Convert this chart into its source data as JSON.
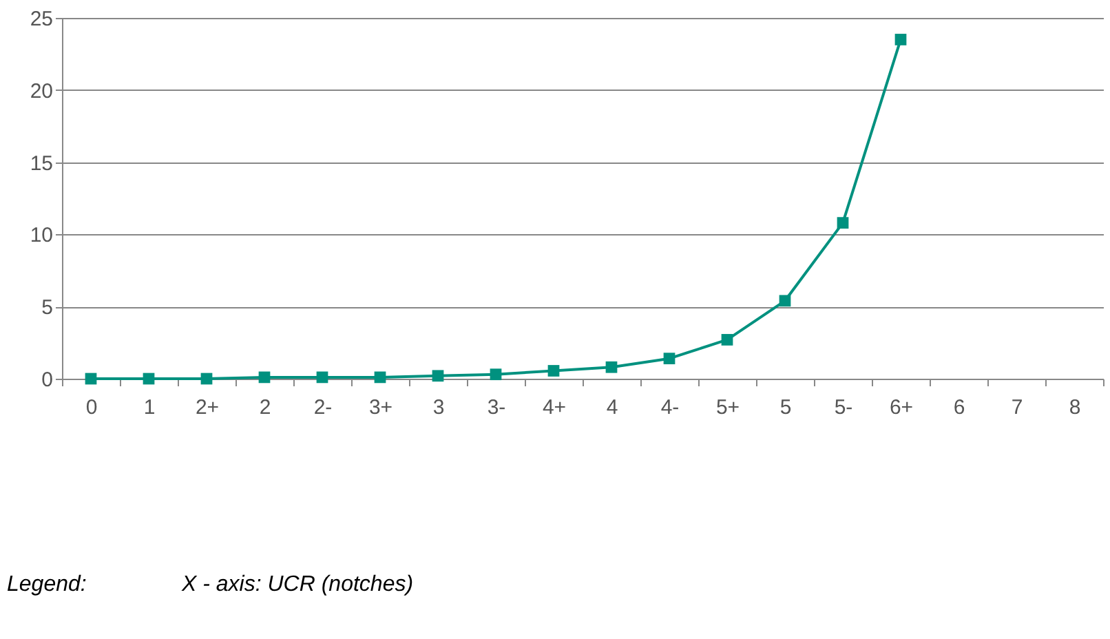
{
  "chart_data": {
    "type": "line",
    "categories": [
      "0",
      "1",
      "2+",
      "2",
      "2-",
      "3+",
      "3",
      "3-",
      "4+",
      "4",
      "4-",
      "5+",
      "5",
      "5-",
      "6+",
      "6",
      "7",
      "8"
    ],
    "series": [
      {
        "color": "#00917f",
        "values": [
          0,
          0,
          0,
          0.1,
          0.1,
          0.1,
          0.2,
          0.3,
          0.55,
          0.8,
          1.4,
          2.7,
          5.4,
          10.8,
          23.5,
          null,
          null,
          null
        ]
      }
    ],
    "ylim": [
      0,
      25
    ],
    "yticks": [
      0,
      5,
      10,
      15,
      20,
      25
    ],
    "grid": "y",
    "marker": "square",
    "line_style": "solid",
    "annotations": [
      "Legend:",
      "X - axis: UCR (notches)"
    ]
  }
}
